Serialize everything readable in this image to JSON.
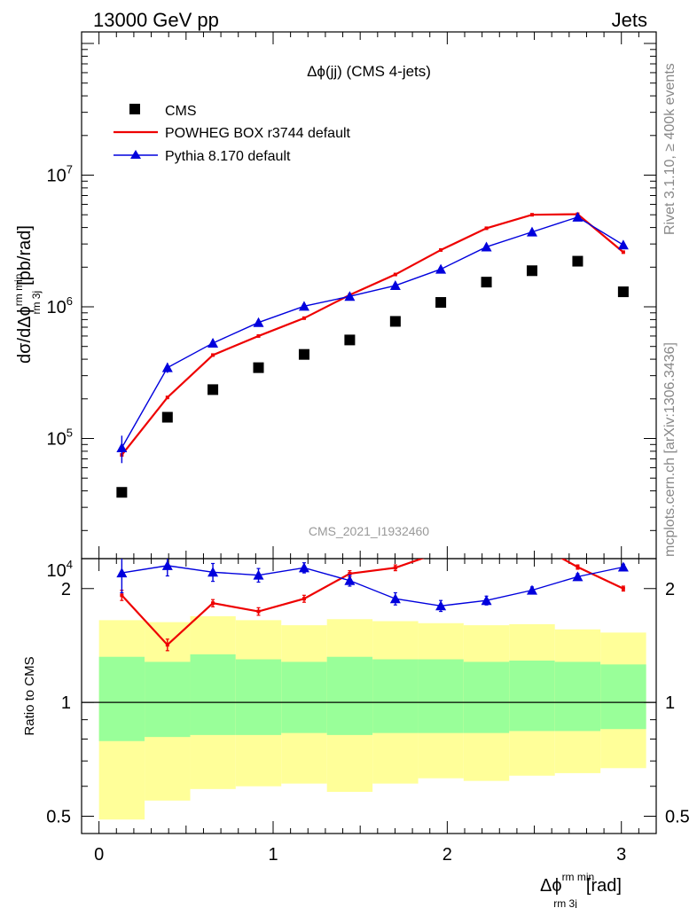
{
  "header": {
    "energy_label": "13000 GeV pp",
    "process_label": "Jets"
  },
  "side_labels": {
    "rivet": "Rivet 3.1.10, ≥ 400k events",
    "mcplots": "mcplots.cern.ch [arXiv:1306.3436]"
  },
  "chart_data": {
    "type": "line",
    "title": "Δϕ(jj) (CMS 4-jets)",
    "analysis_id": "CMS_2021_I1932460",
    "ylabel_main": "dσ/dΔϕ",
    "ylabel_main_sup": "rm min",
    "ylabel_main_sub": "rm 3j",
    "ylabel_main_unit": "[pb/rad]",
    "ylabel_ratio": "Ratio to CMS",
    "xlabel": "Δϕ",
    "xlabel_sup": "rm min",
    "xlabel_sub": "rm 3j",
    "xlabel_unit": "[rad]",
    "xlim": [
      -0.1,
      3.2
    ],
    "ylim": [
      10000,
      100000000
    ],
    "yscale": "log",
    "ratio_ylim": [
      0.45,
      2.4
    ],
    "ratio_yscale": "log",
    "x_ticks": [
      "0",
      "1",
      "2",
      "3"
    ],
    "y_ticks": [
      {
        "base": "10",
        "exp": "4",
        "value": 10000
      },
      {
        "base": "10",
        "exp": "5",
        "value": 100000
      },
      {
        "base": "10",
        "exp": "6",
        "value": 1000000
      },
      {
        "base": "10",
        "exp": "7",
        "value": 10000000
      }
    ],
    "ratio_ticks": [
      {
        "label": "0.5",
        "value": 0.5
      },
      {
        "label": "1",
        "value": 1
      },
      {
        "label": "2",
        "value": 2
      }
    ],
    "bin_edges": [
      0.0,
      0.262,
      0.524,
      0.785,
      1.047,
      1.309,
      1.571,
      1.833,
      2.094,
      2.356,
      2.618,
      2.88,
      3.142
    ],
    "x": [
      0.131,
      0.393,
      0.654,
      0.916,
      1.178,
      1.44,
      1.702,
      1.963,
      2.225,
      2.487,
      2.749,
      3.011
    ],
    "legend_position": "top-left",
    "series": [
      {
        "name": "CMS",
        "style": "markers",
        "marker": "square",
        "color": "#000000",
        "values": [
          39000,
          145000,
          235000,
          345000,
          435000,
          560000,
          775000,
          1080000,
          1540000,
          1880000,
          2220000,
          1300000
        ]
      },
      {
        "name": "POWHEG BOX r3744 default",
        "style": "line",
        "color": "#ee0000",
        "values": [
          75000,
          205000,
          430000,
          600000,
          820000,
          1230000,
          1760000,
          2700000,
          3950000,
          5000000,
          5050000,
          2600000
        ],
        "ratio": [
          1.92,
          1.42,
          1.83,
          1.74,
          1.88,
          2.19,
          2.27,
          2.5,
          2.56,
          2.66,
          2.28,
          2.0
        ],
        "ratio_err": [
          0.06,
          0.05,
          0.04,
          0.04,
          0.04,
          0.04,
          0.04,
          0.04,
          0.04,
          0.04,
          0.03,
          0.03
        ]
      },
      {
        "name": "Pythia 8.170 default",
        "style": "line+markers",
        "marker": "triangle",
        "color": "#0000dd",
        "values": [
          85000,
          345000,
          530000,
          760000,
          1010000,
          1200000,
          1450000,
          1930000,
          2850000,
          3700000,
          4800000,
          2950000
        ],
        "err": [
          20000,
          30000,
          40000,
          40000,
          40000,
          40000,
          40000,
          40000,
          50000,
          60000,
          60000,
          60000
        ],
        "ratio": [
          2.2,
          2.3,
          2.21,
          2.17,
          2.27,
          2.1,
          1.88,
          1.8,
          1.86,
          1.98,
          2.15,
          2.28
        ],
        "ratio_err": [
          0.25,
          0.14,
          0.12,
          0.09,
          0.07,
          0.07,
          0.07,
          0.06,
          0.05,
          0.04,
          0.04,
          0.04
        ]
      }
    ],
    "ratio_bands": {
      "inner_color": "#99ff99",
      "outer_color": "#ffff99",
      "inner_lo": [
        0.79,
        0.81,
        0.82,
        0.82,
        0.83,
        0.82,
        0.83,
        0.83,
        0.83,
        0.84,
        0.84,
        0.85
      ],
      "inner_hi": [
        1.32,
        1.28,
        1.34,
        1.3,
        1.28,
        1.32,
        1.3,
        1.3,
        1.28,
        1.29,
        1.28,
        1.26
      ],
      "outer_lo": [
        0.49,
        0.55,
        0.59,
        0.6,
        0.61,
        0.58,
        0.61,
        0.63,
        0.62,
        0.64,
        0.65,
        0.67
      ],
      "outer_hi": [
        1.65,
        1.63,
        1.69,
        1.65,
        1.6,
        1.66,
        1.64,
        1.62,
        1.6,
        1.61,
        1.56,
        1.53
      ]
    }
  }
}
